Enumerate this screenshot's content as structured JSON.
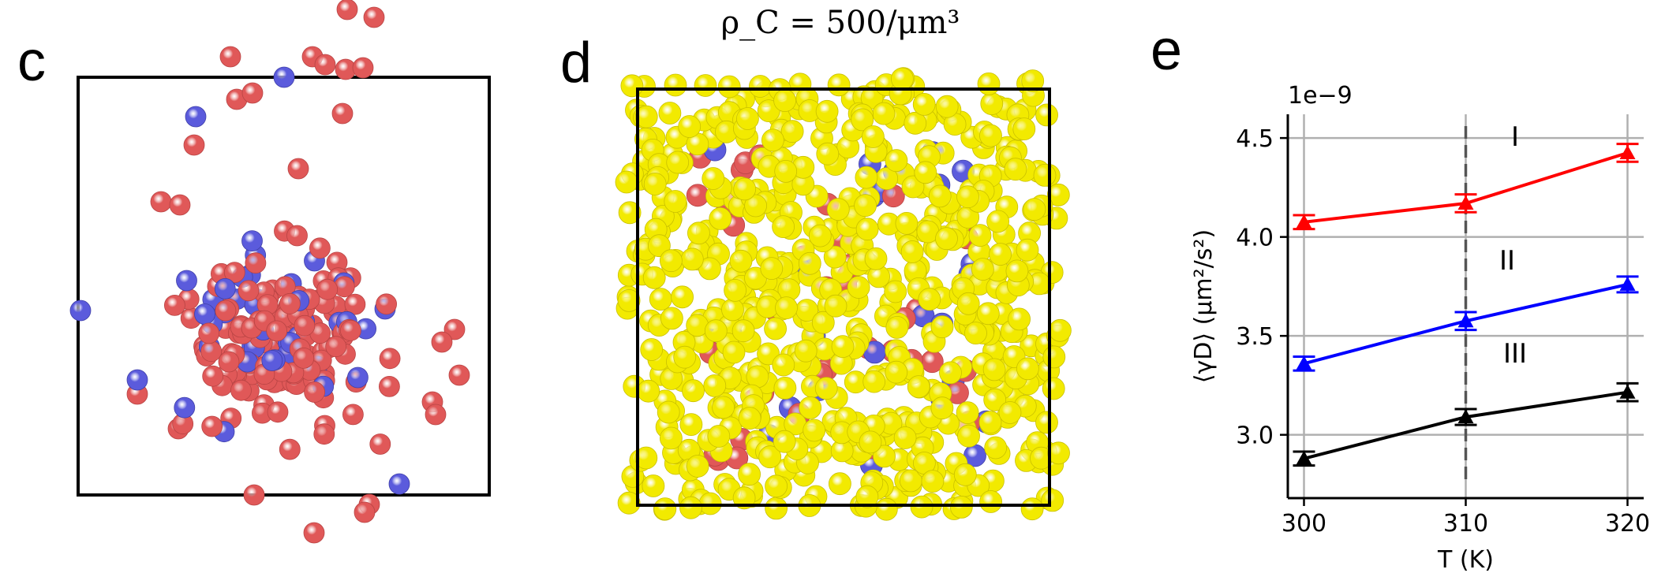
{
  "panels": [
    {
      "label": "c"
    },
    {
      "label": "d",
      "title": "ρ_C = 500/μm³"
    },
    {
      "label": "e"
    }
  ],
  "colors": {
    "red": "#e05858",
    "blue": "#5b5bdc",
    "yellow": "#f2ea00"
  },
  "chart_data": {
    "type": "line",
    "xlabel": "T (K)",
    "ylabel": "⟨γD⟩ (μm²/s²)",
    "offset_text": "1e−9",
    "x": [
      300,
      310,
      320
    ],
    "xticks": [
      "300",
      "310",
      "320"
    ],
    "yticks": [
      "3.0",
      "3.5",
      "4.0",
      "4.5"
    ],
    "xlim": [
      299,
      321
    ],
    "ylim": [
      2.68e-09,
      4.62e-09
    ],
    "grid": true,
    "vline_x": 310,
    "series": [
      {
        "label": "I",
        "color": "#ff0000",
        "values": [
          4.075e-09,
          4.17e-09,
          4.425e-09
        ],
        "err": [
          3.5e-11,
          4.5e-11,
          4.5e-11
        ]
      },
      {
        "label": "II",
        "color": "#0000ff",
        "values": [
          3.36e-09,
          3.575e-09,
          3.76e-09
        ],
        "err": [
          3.5e-11,
          4.5e-11,
          4e-11
        ]
      },
      {
        "label": "III",
        "color": "#000000",
        "values": [
          2.88e-09,
          3.09e-09,
          3.215e-09
        ],
        "err": [
          3.5e-11,
          4e-11,
          4.5e-11
        ]
      }
    ]
  }
}
